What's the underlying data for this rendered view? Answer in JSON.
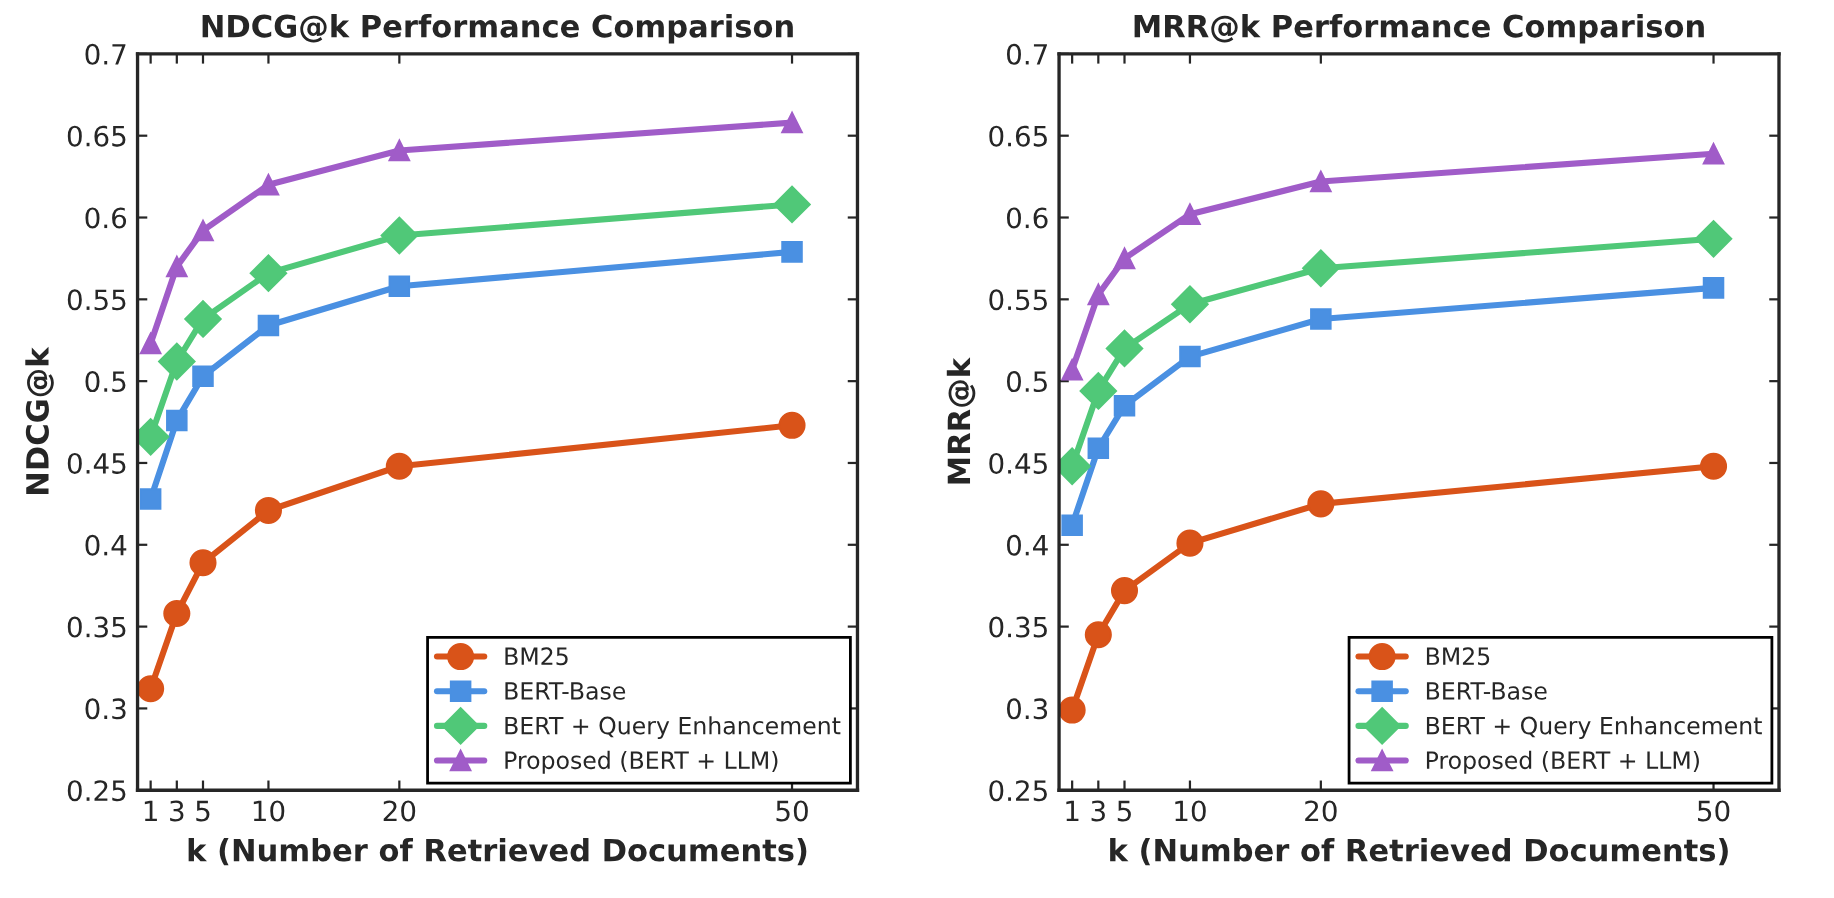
{
  "chart_data": [
    {
      "type": "line",
      "title": "NDCG@k Performance Comparison",
      "xlabel": "k (Number of Retrieved Documents)",
      "ylabel": "NDCG@k",
      "x": [
        1,
        3,
        5,
        10,
        20,
        50
      ],
      "xlim": [
        0,
        55
      ],
      "xticks": [
        1,
        3,
        5,
        10,
        20,
        50
      ],
      "ylim": [
        0.25,
        0.7
      ],
      "yticks": [
        0.25,
        0.3,
        0.35,
        0.4,
        0.45,
        0.5,
        0.55,
        0.6,
        0.65,
        0.7
      ],
      "grid": false,
      "legend": "bottom right",
      "line_style": "solid",
      "series": [
        {
          "name": "BM25",
          "color": "#d95319",
          "marker": "circle",
          "values": [
            0.312,
            0.358,
            0.389,
            0.421,
            0.448,
            0.473
          ]
        },
        {
          "name": "BERT-Base",
          "color": "#4a90e2",
          "marker": "square",
          "values": [
            0.428,
            0.476,
            0.503,
            0.534,
            0.558,
            0.579
          ]
        },
        {
          "name": "BERT + Query Enhancement",
          "color": "#50c878",
          "marker": "diamond",
          "values": [
            0.466,
            0.512,
            0.538,
            0.566,
            0.589,
            0.608
          ]
        },
        {
          "name": "Proposed (BERT + LLM)",
          "color": "#a05cc8",
          "marker": "triangle",
          "values": [
            0.523,
            0.57,
            0.592,
            0.62,
            0.641,
            0.658
          ]
        }
      ]
    },
    {
      "type": "line",
      "title": "MRR@k Performance Comparison",
      "xlabel": "k (Number of Retrieved Documents)",
      "ylabel": "MRR@k",
      "x": [
        1,
        3,
        5,
        10,
        20,
        50
      ],
      "xlim": [
        0,
        55
      ],
      "xticks": [
        1,
        3,
        5,
        10,
        20,
        50
      ],
      "ylim": [
        0.25,
        0.7
      ],
      "yticks": [
        0.25,
        0.3,
        0.35,
        0.4,
        0.45,
        0.5,
        0.55,
        0.6,
        0.65,
        0.7
      ],
      "grid": false,
      "legend": "bottom right",
      "line_style": "solid",
      "series": [
        {
          "name": "BM25",
          "color": "#d95319",
          "marker": "circle",
          "values": [
            0.299,
            0.345,
            0.372,
            0.401,
            0.425,
            0.448
          ]
        },
        {
          "name": "BERT-Base",
          "color": "#4a90e2",
          "marker": "square",
          "values": [
            0.412,
            0.459,
            0.485,
            0.515,
            0.538,
            0.557
          ]
        },
        {
          "name": "BERT + Query Enhancement",
          "color": "#50c878",
          "marker": "diamond",
          "values": [
            0.448,
            0.494,
            0.52,
            0.547,
            0.569,
            0.587
          ]
        },
        {
          "name": "Proposed (BERT + LLM)",
          "color": "#a05cc8",
          "marker": "triangle",
          "values": [
            0.507,
            0.553,
            0.575,
            0.602,
            0.622,
            0.639
          ]
        }
      ]
    }
  ]
}
